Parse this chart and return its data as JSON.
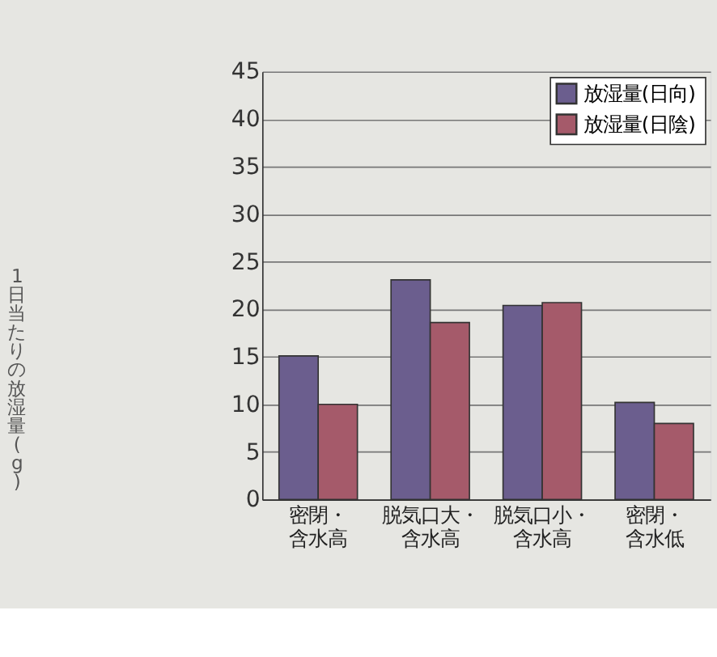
{
  "chart_data": {
    "type": "bar",
    "ylabel": "1日当たりの放湿量(g)",
    "categories": [
      "密閉・含水高",
      "脱気口大・含水高",
      "脱気口小・含水高",
      "密閉・含水低"
    ],
    "series": [
      {
        "name": "放湿量(日向)",
        "color": "#6b5e8e",
        "values": [
          15.1,
          23.1,
          20.4,
          10.2
        ]
      },
      {
        "name": "放湿量(日陰)",
        "color": "#a55a6a",
        "values": [
          10.0,
          18.6,
          20.7,
          8.0
        ]
      }
    ],
    "ylim": [
      0,
      45
    ],
    "yticks": [
      0,
      5,
      10,
      15,
      20,
      25,
      30,
      35,
      40,
      45
    ],
    "grid": "y",
    "legend": "top right"
  }
}
